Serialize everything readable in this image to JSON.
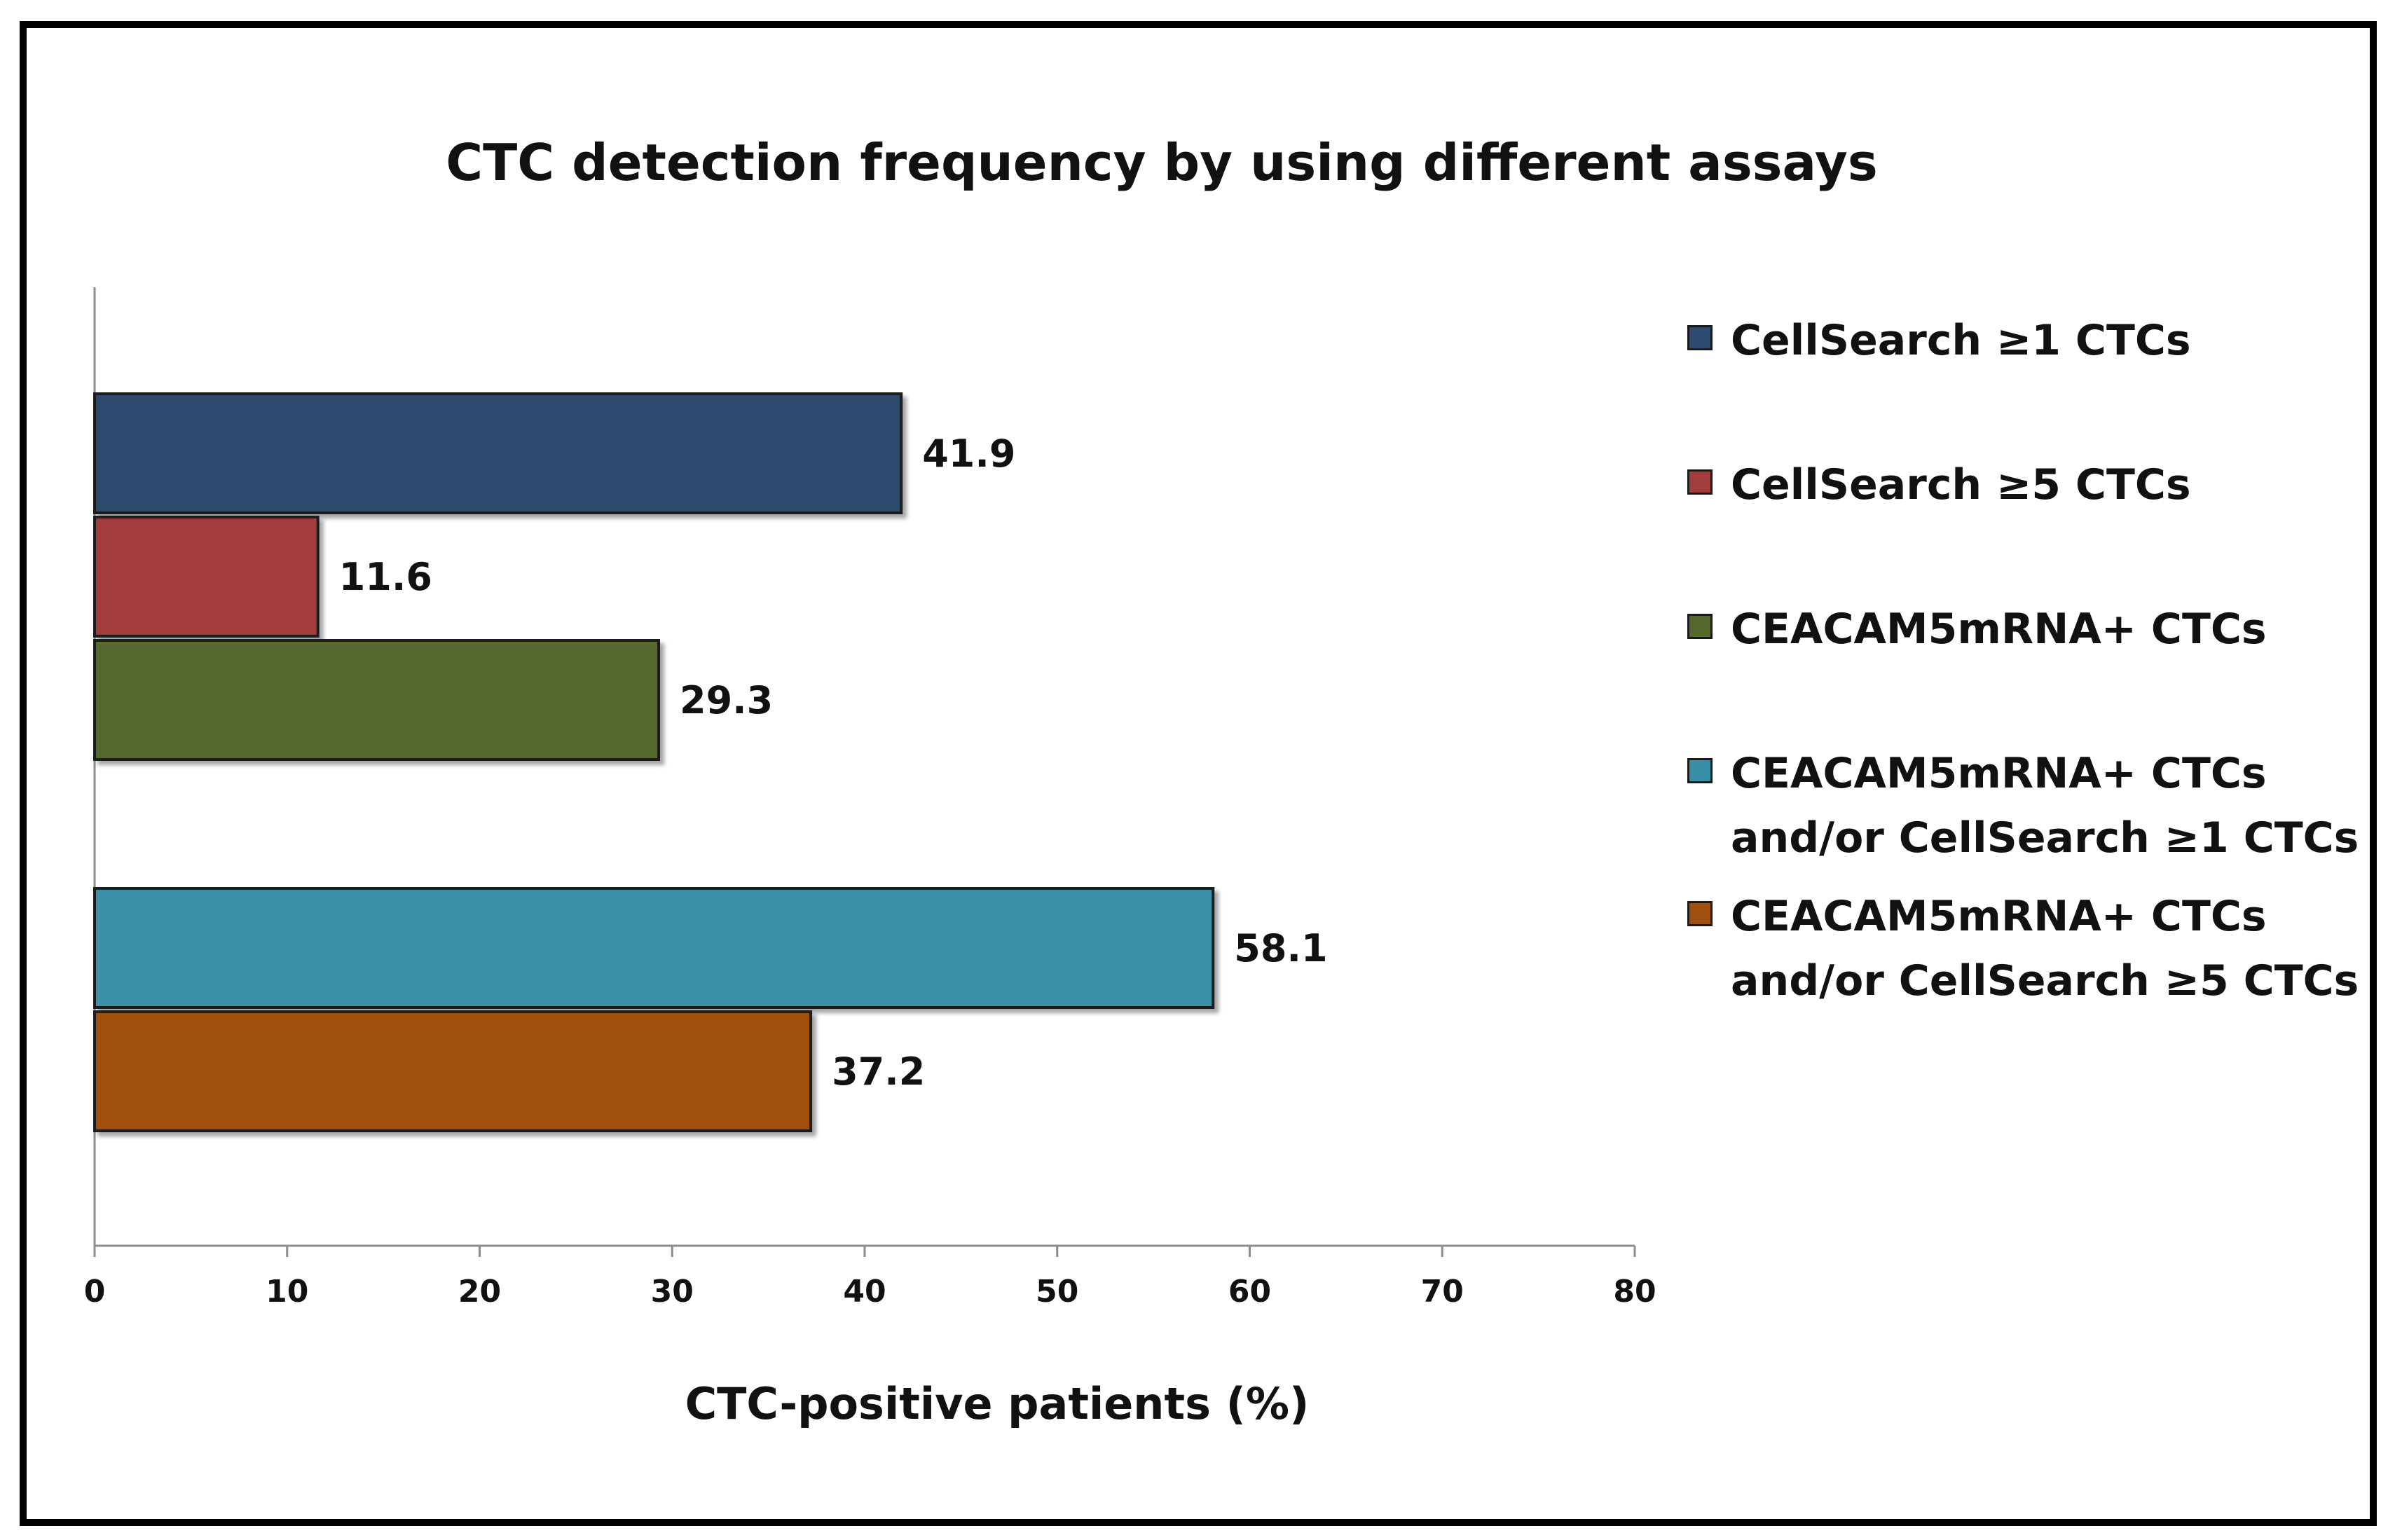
{
  "chart_data": {
    "type": "bar",
    "orientation": "horizontal",
    "title": "CTC detection frequency by using different assays",
    "xlabel": "CTC-positive patients (%)",
    "ylabel": "",
    "xlim": [
      0,
      80
    ],
    "x_ticks": [
      "0",
      "10",
      "20",
      "30",
      "40",
      "50",
      "60",
      "70",
      "80"
    ],
    "grid": false,
    "legend_position": "right",
    "series": [
      {
        "name": "CellSearch ≥1 CTCs",
        "value": 41.9,
        "label": "41.9",
        "color": "#2e4a6e",
        "group": 1
      },
      {
        "name": "CellSearch ≥5 CTCs",
        "value": 11.6,
        "label": "11.6",
        "color": "#a33c3c",
        "group": 1
      },
      {
        "name": "CEACAM5mRNA+ CTCs",
        "value": 29.3,
        "label": "29.3",
        "color": "#55692f",
        "group": 1
      },
      {
        "name": "CEACAM5mRNA+ CTCs and/or CellSearch ≥1 CTCs",
        "value": 58.1,
        "label": "58.1",
        "color": "#3a8fa8",
        "group": 2
      },
      {
        "name": "CEACAM5mRNA+ CTCs and/or CellSearch ≥5 CTCs",
        "value": 37.2,
        "label": "37.2",
        "color": "#a04f0f",
        "group": 2
      }
    ],
    "legend": [
      {
        "line1": "CellSearch ≥1 CTCs",
        "line2": "",
        "color": "#2e4a6e"
      },
      {
        "line1": "CellSearch ≥5 CTCs",
        "line2": "",
        "color": "#a33c3c"
      },
      {
        "line1": "CEACAM5mRNA+ CTCs",
        "line2": "",
        "color": "#55692f"
      },
      {
        "line1": "CEACAM5mRNA+ CTCs",
        "line2": "and/or CellSearch ≥1 CTCs",
        "color": "#3a8fa8"
      },
      {
        "line1": "CEACAM5mRNA+ CTCs",
        "line2": "and/or CellSearch ≥5 CTCs",
        "color": "#a04f0f"
      }
    ]
  }
}
